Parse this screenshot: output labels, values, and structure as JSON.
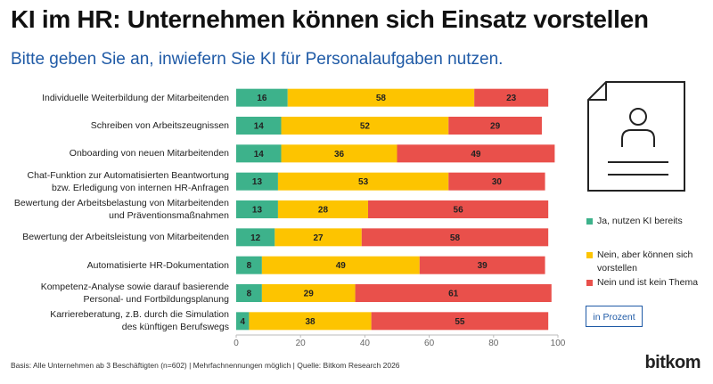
{
  "chart_data": {
    "type": "stacked-bar-horizontal",
    "title": "KI im HR: Unternehmen können sich Einsatz vorstellen",
    "subtitle": "Bitte geben Sie an, inwiefern Sie KI für Personalaufgaben nutzen.",
    "categories": [
      "Individuelle Weiterbildung der Mitarbeitenden",
      "Schreiben von Arbeitszeugnissen",
      "Onboarding von neuen Mitarbeitenden",
      "Chat-Funktion zur Automatisierten Beantwortung\nbzw. Erledigung von internen HR-Anfragen",
      "Bewertung der Arbeitsbelastung von Mitarbeitenden\nund Präventionsmaßnahmen",
      "Bewertung der Arbeitsleistung von Mitarbeitenden",
      "Automatisierte HR-Dokumentation",
      "Kompetenz-Analyse sowie darauf basierende\nPersonal- und Fortbildungsplanung",
      "Karriereberatung, z.B. durch die Simulation\ndes künftigen Berufswegs"
    ],
    "series": [
      {
        "name": "Ja, nutzen KI bereits",
        "color": "#3db28b",
        "values": [
          16,
          14,
          14,
          13,
          13,
          12,
          8,
          8,
          4
        ]
      },
      {
        "name": "Nein, aber können sich vorstellen",
        "color": "#fdc400",
        "values": [
          58,
          52,
          36,
          53,
          28,
          27,
          49,
          29,
          38
        ]
      },
      {
        "name": "Nein und ist kein Thema",
        "color": "#e9504b",
        "values": [
          23,
          29,
          49,
          30,
          56,
          58,
          39,
          61,
          55
        ]
      }
    ],
    "xlim": [
      0,
      100
    ],
    "xticks": [
      0,
      20,
      40,
      60,
      80,
      100
    ],
    "unit_note": "in Prozent",
    "source": "Basis: Alle Unternehmen ab 3 Beschäftigten (n=602) | Mehrfachnennungen möglich | Quelle: Bitkom Research 2026",
    "brand": "bitkom"
  }
}
